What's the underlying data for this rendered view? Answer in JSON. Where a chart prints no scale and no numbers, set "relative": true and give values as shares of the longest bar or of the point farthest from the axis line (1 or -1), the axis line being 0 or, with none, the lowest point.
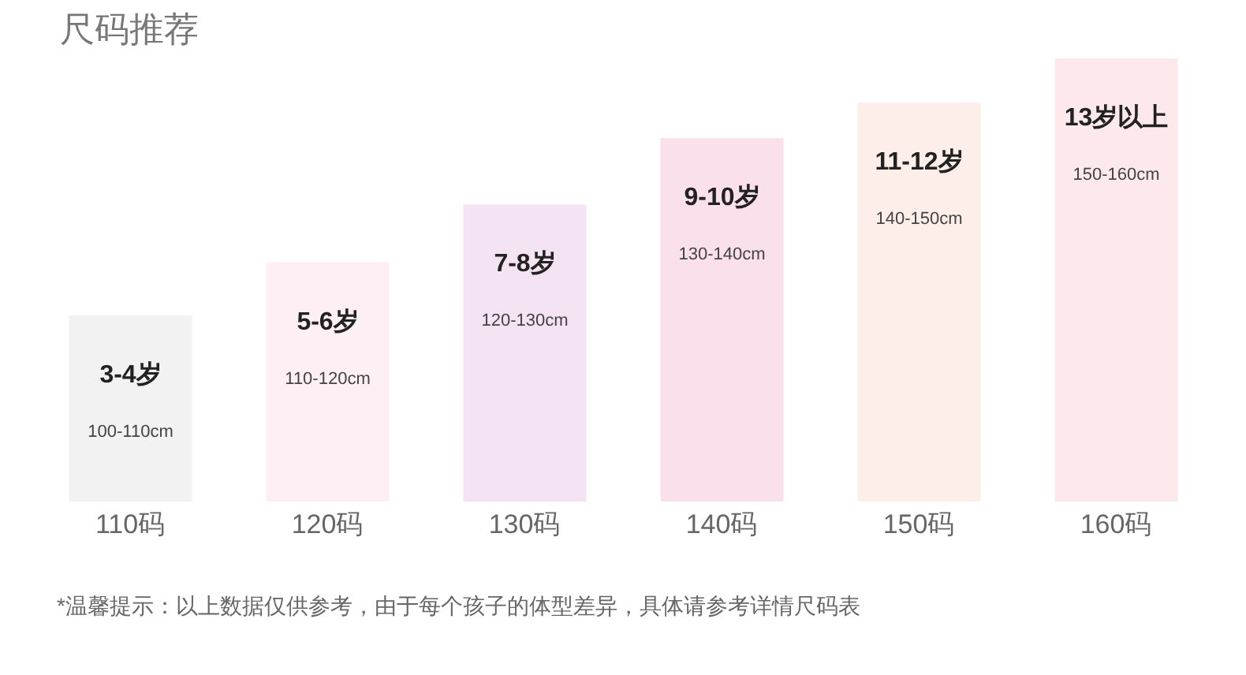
{
  "chart_data": {
    "type": "bar",
    "title": "尺码推荐",
    "relative": true,
    "categories": [
      "110码",
      "120码",
      "130码",
      "140码",
      "150码",
      "160码"
    ],
    "values": [
      0.42,
      0.54,
      0.67,
      0.82,
      0.9,
      1
    ],
    "colors": [
      "#f2f2f2",
      "#fdeff3",
      "#f3e3f3",
      "#fae0ea",
      "#fdeee9",
      "#fde9eb"
    ],
    "annotations": [
      "3-4岁",
      "100-110cm",
      "5-6岁",
      "110-120cm",
      "7-8岁",
      "120-130cm",
      "9-10岁",
      "130-140cm",
      "11-12岁",
      "140-150cm",
      "13岁以上",
      "150-160cm",
      "*温馨提示：以上数据仅供参考，由于每个孩子的体型差异，具体请参考详情尺码表"
    ]
  }
}
